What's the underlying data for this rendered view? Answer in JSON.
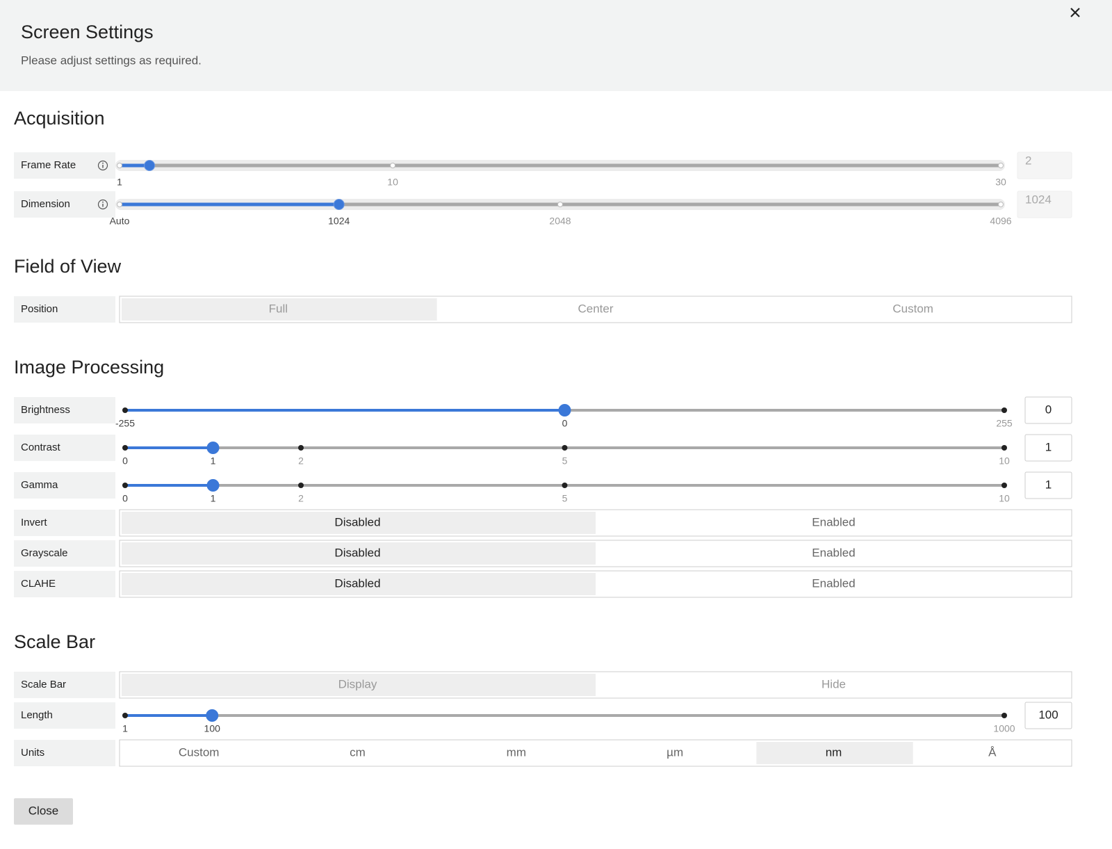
{
  "header": {
    "title": "Screen Settings",
    "subtitle": "Please adjust settings as required."
  },
  "sections": [
    {
      "title": "Acquisition",
      "disabled": true,
      "rows": [
        {
          "label": "Frame Rate",
          "info": true,
          "ticks": [
            "1",
            "10",
            "30"
          ],
          "value": "2"
        },
        {
          "label": "Dimension",
          "info": true,
          "ticks": [
            "Auto",
            "1024",
            "2048",
            "4096"
          ],
          "value": "1024"
        }
      ]
    },
    {
      "title": "Field of View",
      "disabled": true,
      "rows": [
        {
          "label": "Position",
          "options": [
            "Full",
            "Center",
            "Custom"
          ],
          "selected": 0
        }
      ]
    },
    {
      "title": "Image Processing",
      "disabled": false,
      "rows": [
        {
          "label": "Brightness",
          "ticks": [
            "-255",
            "0",
            "255"
          ],
          "value": "0"
        },
        {
          "label": "Contrast",
          "ticks": [
            "0",
            "1",
            "2",
            "5",
            "10"
          ],
          "value": "1"
        },
        {
          "label": "Gamma",
          "ticks": [
            "0",
            "1",
            "2",
            "5",
            "10"
          ],
          "value": "1"
        },
        {
          "label": "Invert",
          "options": [
            "Disabled",
            "Enabled"
          ],
          "selected": 0
        },
        {
          "label": "Grayscale",
          "options": [
            "Disabled",
            "Enabled"
          ],
          "selected": 0
        },
        {
          "label": "CLAHE",
          "options": [
            "Disabled",
            "Enabled"
          ],
          "selected": 0
        }
      ]
    },
    {
      "title": "Scale Bar",
      "disabled": false,
      "rows": [
        {
          "label": "Scale Bar",
          "options": [
            "Display",
            "Hide"
          ],
          "selected": 0,
          "disabled": true
        },
        {
          "label": "Length",
          "ticks": [
            "1",
            "100",
            "1000"
          ],
          "value": "100"
        },
        {
          "label": "Units",
          "options": [
            "Custom",
            "cm",
            "mm",
            "µm",
            "nm",
            "Å"
          ],
          "selected": 4
        }
      ]
    }
  ],
  "footer": {
    "button": "Close"
  }
}
